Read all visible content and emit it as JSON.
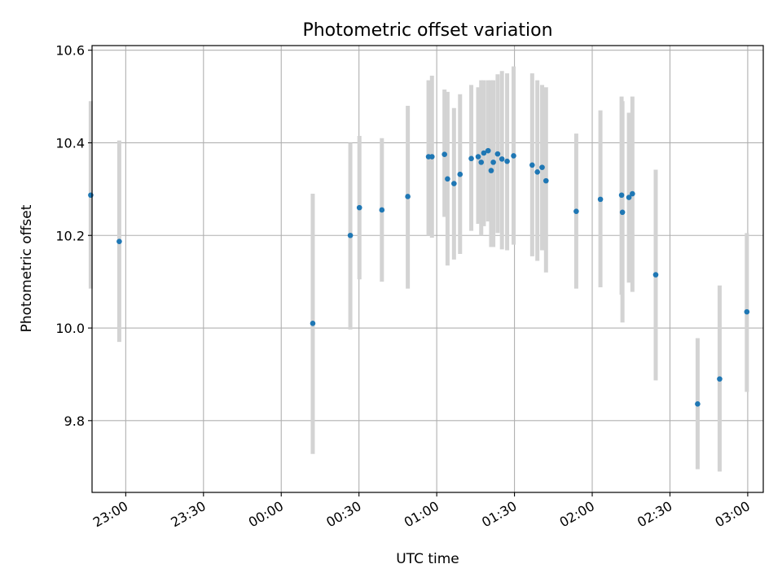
{
  "chart_data": {
    "type": "scatter",
    "title": "Photometric offset variation",
    "xlabel": "UTC time",
    "ylabel": "Photometric offset",
    "x_range": [
      "22:47",
      "03:06"
    ],
    "ylim": [
      9.645,
      10.61
    ],
    "grid": true,
    "x_ticks": [
      "23:00",
      "23:30",
      "00:00",
      "00:30",
      "01:00",
      "01:30",
      "02:00",
      "02:30",
      "03:00"
    ],
    "y_ticks": [
      "9.8",
      "10.0",
      "10.2",
      "10.4",
      "10.6"
    ],
    "y_tick_values": [
      9.8,
      10.0,
      10.2,
      10.4,
      10.6
    ],
    "colors": {
      "points": "#1f77b4",
      "errorbars": "#d3d3d3",
      "grid": "#b0b0b0"
    },
    "points": [
      {
        "t": "22:46:30",
        "y": 10.287,
        "lo": 10.085,
        "hi": 10.49
      },
      {
        "t": "22:57:30",
        "y": 10.187,
        "lo": 9.97,
        "hi": 10.405
      },
      {
        "t": "00:12:10",
        "y": 10.01,
        "lo": 9.728,
        "hi": 10.29
      },
      {
        "t": "00:26:40",
        "y": 10.2,
        "lo": 9.997,
        "hi": 10.4
      },
      {
        "t": "00:30:10",
        "y": 10.26,
        "lo": 10.105,
        "hi": 10.415
      },
      {
        "t": "00:38:50",
        "y": 10.255,
        "lo": 10.1,
        "hi": 10.41
      },
      {
        "t": "00:48:50",
        "y": 10.284,
        "lo": 10.085,
        "hi": 10.48
      },
      {
        "t": "00:56:50",
        "y": 10.37,
        "lo": 10.2,
        "hi": 10.535
      },
      {
        "t": "00:58:10",
        "y": 10.37,
        "lo": 10.195,
        "hi": 10.545
      },
      {
        "t": "01:03:00",
        "y": 10.375,
        "lo": 10.24,
        "hi": 10.515
      },
      {
        "t": "01:04:10",
        "y": 10.322,
        "lo": 10.135,
        "hi": 10.51
      },
      {
        "t": "01:06:40",
        "y": 10.312,
        "lo": 10.148,
        "hi": 10.475
      },
      {
        "t": "01:09:00",
        "y": 10.332,
        "lo": 10.16,
        "hi": 10.505
      },
      {
        "t": "01:13:20",
        "y": 10.366,
        "lo": 10.21,
        "hi": 10.525
      },
      {
        "t": "01:16:00",
        "y": 10.37,
        "lo": 10.225,
        "hi": 10.52
      },
      {
        "t": "01:17:10",
        "y": 10.358,
        "lo": 10.2,
        "hi": 10.535
      },
      {
        "t": "01:18:10",
        "y": 10.378,
        "lo": 10.22,
        "hi": 10.535
      },
      {
        "t": "01:19:50",
        "y": 10.383,
        "lo": 10.23,
        "hi": 10.535
      },
      {
        "t": "01:21:00",
        "y": 10.34,
        "lo": 10.175,
        "hi": 10.535
      },
      {
        "t": "01:21:50",
        "y": 10.358,
        "lo": 10.175,
        "hi": 10.535
      },
      {
        "t": "01:23:30",
        "y": 10.376,
        "lo": 10.205,
        "hi": 10.548
      },
      {
        "t": "01:25:10",
        "y": 10.365,
        "lo": 10.17,
        "hi": 10.555
      },
      {
        "t": "01:27:10",
        "y": 10.36,
        "lo": 10.168,
        "hi": 10.55
      },
      {
        "t": "01:29:40",
        "y": 10.372,
        "lo": 10.18,
        "hi": 10.565
      },
      {
        "t": "01:36:50",
        "y": 10.352,
        "lo": 10.155,
        "hi": 10.55
      },
      {
        "t": "01:38:50",
        "y": 10.337,
        "lo": 10.145,
        "hi": 10.535
      },
      {
        "t": "01:40:40",
        "y": 10.347,
        "lo": 10.168,
        "hi": 10.525
      },
      {
        "t": "01:42:10",
        "y": 10.318,
        "lo": 10.12,
        "hi": 10.52
      },
      {
        "t": "01:53:50",
        "y": 10.252,
        "lo": 10.085,
        "hi": 10.42
      },
      {
        "t": "02:03:10",
        "y": 10.278,
        "lo": 10.088,
        "hi": 10.47
      },
      {
        "t": "02:11:20",
        "y": 10.287,
        "lo": 10.072,
        "hi": 10.5
      },
      {
        "t": "02:11:40",
        "y": 10.25,
        "lo": 10.012,
        "hi": 10.49
      },
      {
        "t": "02:14:10",
        "y": 10.282,
        "lo": 10.098,
        "hi": 10.465
      },
      {
        "t": "02:15:30",
        "y": 10.29,
        "lo": 10.078,
        "hi": 10.5
      },
      {
        "t": "02:24:30",
        "y": 10.115,
        "lo": 9.887,
        "hi": 10.342
      },
      {
        "t": "02:40:40",
        "y": 9.836,
        "lo": 9.695,
        "hi": 9.978
      },
      {
        "t": "02:49:10",
        "y": 9.89,
        "lo": 9.69,
        "hi": 10.092
      },
      {
        "t": "02:59:40",
        "y": 10.035,
        "lo": 9.862,
        "hi": 10.205
      }
    ]
  }
}
